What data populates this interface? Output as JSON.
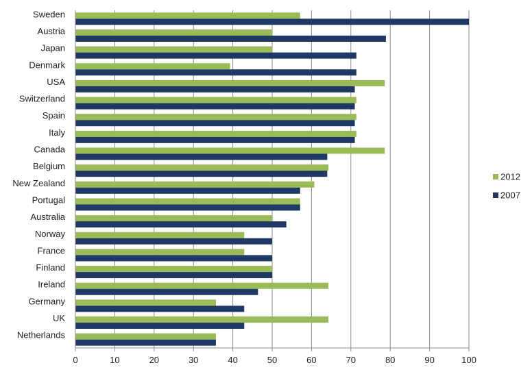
{
  "chart_data": {
    "type": "bar",
    "orientation": "horizontal",
    "categories": [
      "Sweden",
      "Austria",
      "Japan",
      "Denmark",
      "USA",
      "Switzerland",
      "Spain",
      "Italy",
      "Canada",
      "Belgium",
      "New Zealand",
      "Portugal",
      "Australia",
      "Norway",
      "France",
      "Finland",
      "Ireland",
      "Germany",
      "UK",
      "Netherlands"
    ],
    "series": [
      {
        "name": "2012",
        "color": "#9BBB59",
        "values": [
          57.1,
          50,
          50,
          39.3,
          78.6,
          71.4,
          71.4,
          71.4,
          78.6,
          64.3,
          60.7,
          57.1,
          50,
          42.9,
          42.9,
          50,
          64.3,
          35.7,
          64.3,
          35.7
        ]
      },
      {
        "name": "2007",
        "color": "#1F3864",
        "values": [
          100,
          78.9,
          71.4,
          71.4,
          71,
          71,
          71,
          71,
          64,
          64,
          57.1,
          57.1,
          53.6,
          50,
          50,
          50,
          46.4,
          42.9,
          42.9,
          35.7
        ]
      }
    ],
    "xlim": [
      0,
      100
    ],
    "xticks": [
      "0",
      "10",
      "20",
      "30",
      "40",
      "50",
      "60",
      "70",
      "80",
      "90",
      "100"
    ],
    "grid": true,
    "legend": "right"
  }
}
